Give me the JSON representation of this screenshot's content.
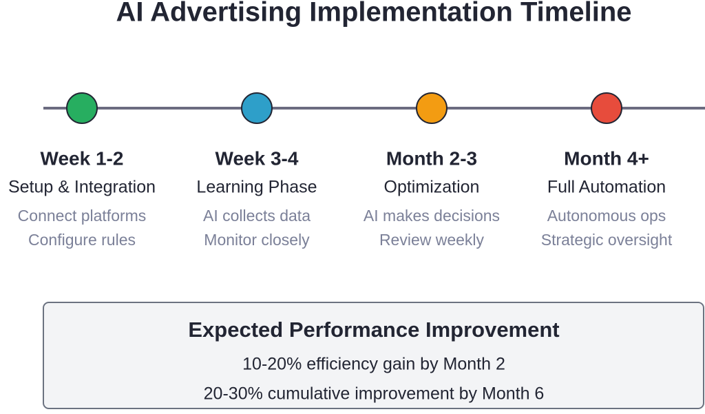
{
  "title": "AI Advertising Implementation Timeline",
  "phases": [
    {
      "period": "Week 1-2",
      "name": "Setup & Integration",
      "details": [
        "Connect platforms",
        "Configure rules"
      ],
      "color": "#27ae60"
    },
    {
      "period": "Week 3-4",
      "name": "Learning Phase",
      "details": [
        "AI collects data",
        "Monitor closely"
      ],
      "color": "#2e9fc9"
    },
    {
      "period": "Month 2-3",
      "name": "Optimization",
      "details": [
        "AI makes decisions",
        "Review weekly"
      ],
      "color": "#f39c12"
    },
    {
      "period": "Month 4+",
      "name": "Full Automation",
      "details": [
        "Autonomous ops",
        "Strategic oversight"
      ],
      "color": "#e74c3c"
    }
  ],
  "summary": {
    "title": "Expected Performance Improvement",
    "lines": [
      "10-20% efficiency gain by Month 2",
      "20-30% cumulative improvement by Month 6"
    ]
  }
}
